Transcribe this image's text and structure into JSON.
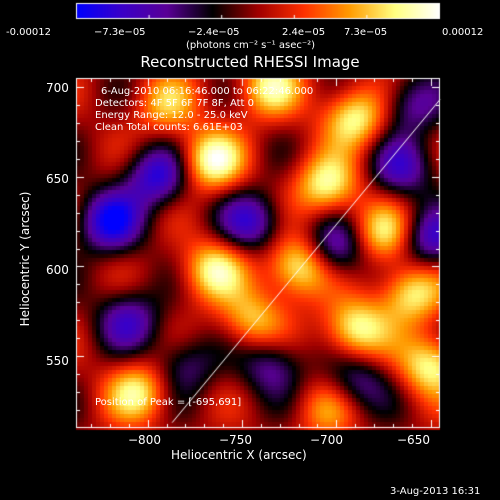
{
  "colorbar": {
    "ticks": [
      "-0.00012",
      "−7.3e−05",
      "−2.4e−05",
      "2.4e−05",
      "7.3e−05",
      "0.00012"
    ],
    "units_text": "(photons cm⁻² s⁻¹ asec⁻²)",
    "colors": [
      "#0000ff",
      "#3a00c8",
      "#5a0096",
      "#000000",
      "#a00000",
      "#ff3000",
      "#ff9a00",
      "#ffff80",
      "#ffffff"
    ]
  },
  "chart_data": {
    "type": "heatmap",
    "title": "Reconstructed RHESSI Image",
    "xlabel": "Heliocentric X (arcsec)",
    "ylabel": "Heliocentric Y (arcsec)",
    "xlim": [
      -838,
      -645
    ],
    "ylim": [
      510,
      705
    ],
    "xticks": [
      -800,
      -750,
      -700,
      -650
    ],
    "xtick_labels": [
      "−800",
      "−750",
      "−700",
      "−650"
    ],
    "yticks": [
      550,
      600,
      650,
      700
    ],
    "ytick_labels": [
      "550",
      "600",
      "650",
      "700"
    ],
    "annotations": [
      "6-Aug-2010 06:16:46.000 to 06:22:46.000",
      "Detectors: 4F 5F 6F 7F 8F, Att 0",
      "Energy Range: 12.0 - 25.0 keV",
      "Clean    Total counts: 6.61E+03"
    ],
    "peak_label": "Position of Peak = [-695,691]",
    "peak": [
      -695,
      691
    ],
    "limb_line": [
      [
        -787,
        513
      ],
      [
        -645,
        693
      ]
    ],
    "blobs": [
      [
        -766,
        659,
        1.0
      ],
      [
        -720,
        600,
        1.0
      ],
      [
        -690,
        565,
        0.95
      ],
      [
        -660,
        585,
        0.85
      ],
      [
        -705,
        645,
        0.9
      ],
      [
        -690,
        683,
        0.9
      ],
      [
        -765,
        598,
        0.85
      ],
      [
        -805,
        530,
        0.8
      ],
      [
        -745,
        570,
        0.7
      ],
      [
        -675,
        618,
        0.8
      ],
      [
        -735,
        700,
        0.8
      ],
      [
        -650,
        545,
        0.9
      ],
      [
        -790,
        690,
        0.6
      ],
      [
        -705,
        520,
        0.5
      ],
      [
        -820,
        625,
        -1.0
      ],
      [
        -795,
        650,
        -0.9
      ],
      [
        -810,
        570,
        -0.7
      ],
      [
        -745,
        625,
        -0.8
      ],
      [
        -700,
        610,
        -0.8
      ],
      [
        -665,
        655,
        -0.7
      ],
      [
        -735,
        545,
        -0.6
      ],
      [
        -660,
        690,
        -0.6
      ],
      [
        -650,
        615,
        -0.8
      ],
      [
        -780,
        545,
        -0.5
      ],
      [
        -690,
        535,
        -0.6
      ]
    ]
  },
  "footer": {
    "date": "3-Aug-2013 16:31"
  }
}
